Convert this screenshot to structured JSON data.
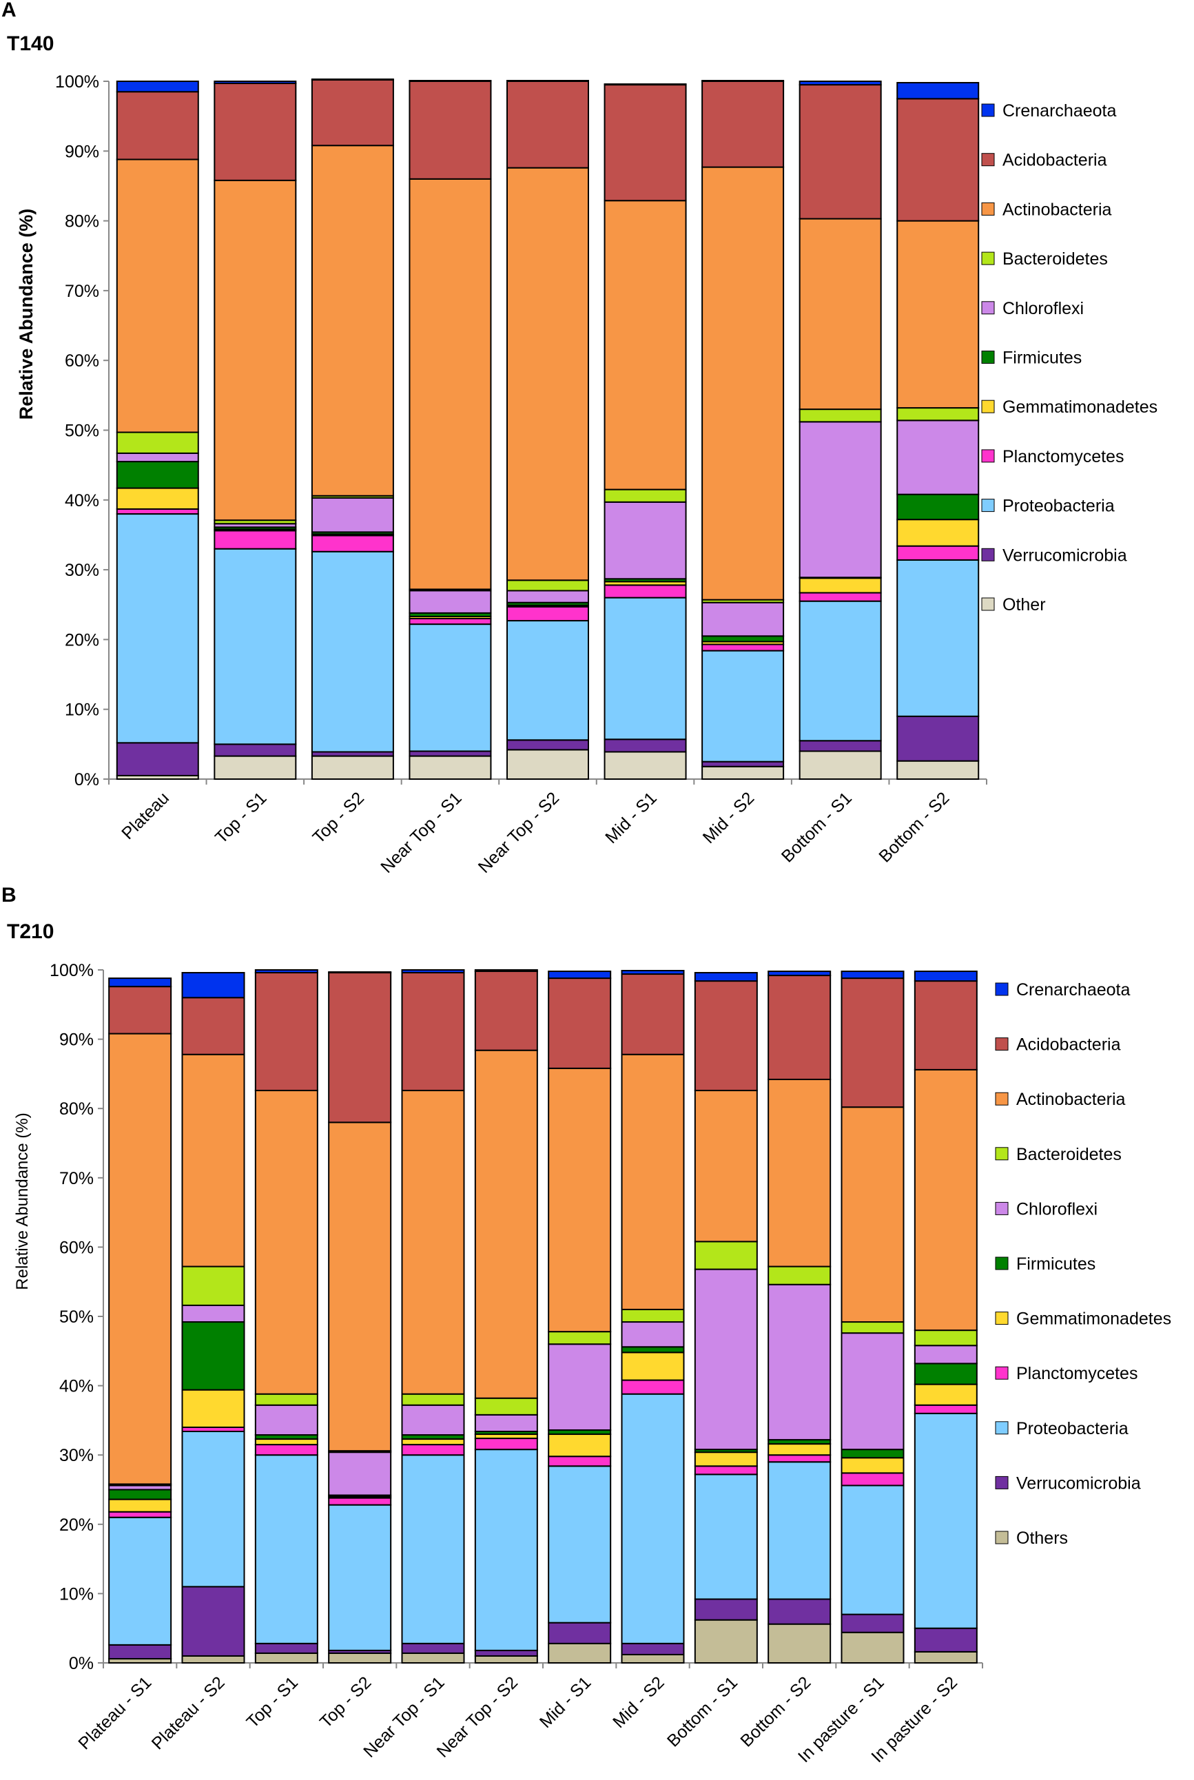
{
  "chart_data": [
    {
      "panel": "A",
      "title": "T140",
      "type": "bar",
      "stacked": true,
      "ylabel": "Relative Abundance (%)",
      "xlabel": "",
      "ylim": [
        0,
        100
      ],
      "yticks": [
        "0%",
        "10%",
        "20%",
        "30%",
        "40%",
        "50%",
        "60%",
        "70%",
        "80%",
        "90%",
        "100%"
      ],
      "categories": [
        "Plateau",
        "Top - S1",
        "Top - S2",
        "Near Top - S1",
        "Near Top - S2",
        "Mid - S1",
        "Mid - S2",
        "Bottom - S1",
        "Bottom - S2"
      ],
      "legend_position": "right",
      "series": [
        {
          "name": "Other",
          "color": "#ddd9c3",
          "values": [
            0.5,
            3.3,
            3.3,
            3.3,
            4.2,
            3.9,
            1.8,
            4.0,
            2.6
          ]
        },
        {
          "name": "Verrucomicrobia",
          "color": "#7030a0",
          "values": [
            4.7,
            1.7,
            0.6,
            0.7,
            1.4,
            1.8,
            0.7,
            1.5,
            6.4
          ]
        },
        {
          "name": "Proteobacteria",
          "color": "#7fcdff",
          "values": [
            32.8,
            28.0,
            28.7,
            18.2,
            17.1,
            20.3,
            15.9,
            20.0,
            22.4
          ]
        },
        {
          "name": "Planctomycetes",
          "color": "#ff33cc",
          "values": [
            0.7,
            2.6,
            2.3,
            0.8,
            2.0,
            1.8,
            0.9,
            1.2,
            2.0
          ]
        },
        {
          "name": "Gemmatimonadetes",
          "color": "#ffd92f",
          "values": [
            3.0,
            0.2,
            0.2,
            0.3,
            0.2,
            0.5,
            0.4,
            2.1,
            3.8
          ]
        },
        {
          "name": "Firmicutes",
          "color": "#008000",
          "values": [
            3.8,
            0.3,
            0.3,
            0.5,
            0.4,
            0.4,
            0.8,
            0.1,
            3.6
          ]
        },
        {
          "name": "Chloroflexi",
          "color": "#cc88e8",
          "values": [
            1.2,
            0.5,
            4.9,
            3.2,
            1.7,
            11.0,
            4.8,
            22.3,
            10.6
          ]
        },
        {
          "name": "Bacteroidetes",
          "color": "#b3e61a",
          "values": [
            3.0,
            0.5,
            0.3,
            0.2,
            1.5,
            1.8,
            0.4,
            1.8,
            1.8
          ]
        },
        {
          "name": "Actinobacteria",
          "color": "#f79646",
          "values": [
            39.1,
            48.7,
            50.2,
            58.8,
            59.1,
            41.4,
            62.0,
            27.3,
            26.8
          ]
        },
        {
          "name": "Acidobacteria",
          "color": "#c0504d",
          "values": [
            9.7,
            13.9,
            9.4,
            14.0,
            12.4,
            16.6,
            12.3,
            19.2,
            17.5
          ]
        },
        {
          "name": "Crenarchaeota",
          "color": "#0033ee",
          "values": [
            1.5,
            0.3,
            0.1,
            0.1,
            0.1,
            0.1,
            0.1,
            0.5,
            2.3
          ]
        }
      ],
      "legend": [
        "Crenarchaeota",
        "Acidobacteria",
        "Actinobacteria",
        "Bacteroidetes",
        "Chloroflexi",
        "Firmicutes",
        "Gemmatimonadetes",
        "Planctomycetes",
        "Proteobacteria",
        "Verrucomicrobia",
        "Other"
      ]
    },
    {
      "panel": "B",
      "title": "T210",
      "type": "bar",
      "stacked": true,
      "ylabel": "Relative Abundance (%)",
      "xlabel": "",
      "ylim": [
        0,
        100
      ],
      "yticks": [
        "0%",
        "10%",
        "20%",
        "30%",
        "40%",
        "50%",
        "60%",
        "70%",
        "80%",
        "90%",
        "100%"
      ],
      "categories": [
        "Plateau - S1",
        "Plateau - S2",
        "Top - S1",
        "Top - S2",
        "Near Top - S1",
        "Near Top - S2",
        "Mid - S1",
        "Mid - S2",
        "Bottom - S1",
        "Bottom - S2",
        "In pasture - S1",
        "In pasture - S2"
      ],
      "legend_position": "right",
      "series": [
        {
          "name": "Others",
          "color": "#c4bd97",
          "values": [
            0.6,
            1.0,
            1.4,
            1.4,
            1.4,
            1.0,
            2.8,
            1.2,
            6.2,
            5.6,
            4.4,
            1.6
          ]
        },
        {
          "name": "Verrucomicrobia",
          "color": "#7030a0",
          "values": [
            2.0,
            10.0,
            1.4,
            0.4,
            1.4,
            0.8,
            3.0,
            1.6,
            3.0,
            3.6,
            2.6,
            3.4
          ]
        },
        {
          "name": "Proteobacteria",
          "color": "#7fcdff",
          "values": [
            18.4,
            22.4,
            27.2,
            21.0,
            27.2,
            29.0,
            22.6,
            36.0,
            18.0,
            19.8,
            18.6,
            31.0
          ]
        },
        {
          "name": "Planctomycetes",
          "color": "#ff33cc",
          "values": [
            0.8,
            0.6,
            1.5,
            1.0,
            1.5,
            1.6,
            1.4,
            2.0,
            1.2,
            1.0,
            1.8,
            1.2
          ]
        },
        {
          "name": "Gemmatimonadetes",
          "color": "#ffd92f",
          "values": [
            1.8,
            5.4,
            0.8,
            0.2,
            0.8,
            0.6,
            3.2,
            4.0,
            2.0,
            1.6,
            2.2,
            3.0
          ]
        },
        {
          "name": "Firmicutes",
          "color": "#008000",
          "values": [
            1.4,
            9.8,
            0.6,
            0.2,
            0.6,
            0.4,
            0.6,
            0.8,
            0.4,
            0.6,
            1.2,
            3.0
          ]
        },
        {
          "name": "Chloroflexi",
          "color": "#cc88e8",
          "values": [
            0.6,
            2.4,
            4.3,
            6.2,
            4.3,
            2.4,
            12.4,
            3.6,
            26.0,
            22.4,
            16.8,
            2.6
          ]
        },
        {
          "name": "Bacteroidetes",
          "color": "#b3e61a",
          "values": [
            0.2,
            5.6,
            1.6,
            0.2,
            1.6,
            2.4,
            1.8,
            1.8,
            4.0,
            2.6,
            1.6,
            2.2
          ]
        },
        {
          "name": "Actinobacteria",
          "color": "#f79646",
          "values": [
            65.0,
            30.6,
            43.8,
            47.4,
            43.8,
            50.2,
            38.0,
            36.8,
            21.8,
            27.0,
            31.0,
            37.6
          ]
        },
        {
          "name": "Acidobacteria",
          "color": "#c0504d",
          "values": [
            6.8,
            8.2,
            17.0,
            21.6,
            17.0,
            11.4,
            13.0,
            11.6,
            15.8,
            15.0,
            18.6,
            12.8
          ]
        },
        {
          "name": "Crenarchaeota",
          "color": "#0033ee",
          "values": [
            1.2,
            3.6,
            0.4,
            0.1,
            0.4,
            0.2,
            1.0,
            0.5,
            1.2,
            0.6,
            1.0,
            1.4
          ]
        }
      ],
      "legend": [
        "Crenarchaeota",
        "Acidobacteria",
        "Actinobacteria",
        "Bacteroidetes",
        "Chloroflexi",
        "Firmicutes",
        "Gemmatimonadetes",
        "Planctomycetes",
        "Proteobacteria",
        "Verrucomicrobia",
        "Others"
      ]
    }
  ]
}
